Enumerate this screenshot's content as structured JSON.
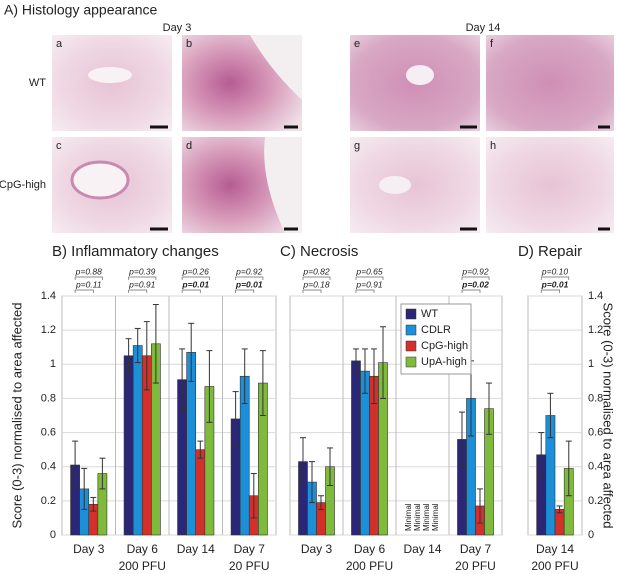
{
  "histology": {
    "title": "A) Histology appearance",
    "days": [
      "Day 3",
      "Day 14"
    ],
    "rows": [
      "WT",
      "CpG-high"
    ],
    "panels": [
      "a",
      "b",
      "c",
      "d",
      "e",
      "f",
      "g",
      "h"
    ]
  },
  "chart_data": [
    {
      "type": "bar",
      "title": "B) Inflammatory changes",
      "ylabel": "Score (0-3) normalised to area affected",
      "ytick_side": "left",
      "categories": [
        "Day 3",
        "Day 6",
        "Day 14",
        "Day 7"
      ],
      "dose": [
        "200 PFU",
        "200 PFU",
        "200 PFU",
        "20 PFU"
      ],
      "ylim": [
        0,
        1.4
      ],
      "yticks": [
        0,
        0.2,
        0.4,
        0.6,
        0.8,
        1,
        1.2,
        1.4
      ],
      "grid": true,
      "p_values": [
        [
          {
            "label": "p=0.88",
            "bold": false
          },
          {
            "label": "p=0.11",
            "bold": false
          }
        ],
        [
          {
            "label": "p=0.39",
            "bold": false
          },
          {
            "label": "p=0.91",
            "bold": false
          }
        ],
        [
          {
            "label": "p=0.26",
            "bold": false
          },
          {
            "label": "p=0.01",
            "bold": true
          }
        ],
        [
          {
            "label": "p=0.92",
            "bold": false
          },
          {
            "label": "p=0.01",
            "bold": true
          }
        ]
      ],
      "series": [
        {
          "name": "WT",
          "color": "#2b2676",
          "values": [
            0.41,
            1.05,
            0.91,
            0.68
          ],
          "errors": [
            0.14,
            0.1,
            0.18,
            0.16
          ]
        },
        {
          "name": "CDLR",
          "color": "#1b8fd8",
          "values": [
            0.27,
            1.11,
            1.07,
            0.93
          ],
          "errors": [
            0.12,
            0.1,
            0.17,
            0.16
          ]
        },
        {
          "name": "CpG-high",
          "color": "#d4302b",
          "values": [
            0.18,
            1.05,
            0.5,
            0.23
          ],
          "errors": [
            0.04,
            0.2,
            0.05,
            0.13
          ]
        },
        {
          "name": "UpA-high",
          "color": "#80ba3c",
          "values": [
            0.36,
            1.12,
            0.87,
            0.89
          ],
          "errors": [
            0.09,
            0.23,
            0.21,
            0.19
          ]
        }
      ]
    },
    {
      "type": "bar",
      "title": "C) Necrosis",
      "ytick_side": "none",
      "legend": "upper center",
      "categories": [
        "Day 3",
        "Day 6",
        "Day 14",
        "Day 7"
      ],
      "dose": [
        "200 PFU",
        "200 PFU",
        "200 PFU",
        "20 PFU"
      ],
      "ylim": [
        0,
        1.4
      ],
      "yticks": [
        0,
        0.2,
        0.4,
        0.6,
        0.8,
        1,
        1.2,
        1.4
      ],
      "grid": true,
      "p_values": [
        [
          {
            "label": "p=0.82",
            "bold": false
          },
          {
            "label": "p=0.18",
            "bold": false
          }
        ],
        [
          {
            "label": "p=0.65",
            "bold": false
          },
          {
            "label": "p=0.91",
            "bold": false
          }
        ],
        null,
        [
          {
            "label": "p=0.92",
            "bold": false
          },
          {
            "label": "p=0.02",
            "bold": true
          }
        ]
      ],
      "series": [
        {
          "name": "WT",
          "color": "#2b2676",
          "values": [
            0.43,
            1.02,
            null,
            0.56
          ],
          "errors": [
            0.14,
            0.07,
            null,
            0.16
          ],
          "value_labels": [
            null,
            null,
            "Minimal",
            null
          ]
        },
        {
          "name": "CDLR",
          "color": "#1b8fd8",
          "values": [
            0.31,
            0.96,
            null,
            0.8
          ],
          "errors": [
            0.12,
            0.13,
            null,
            0.22
          ],
          "value_labels": [
            null,
            null,
            "Minimal",
            null
          ]
        },
        {
          "name": "CpG-high",
          "color": "#d4302b",
          "values": [
            0.19,
            0.93,
            null,
            0.17
          ],
          "errors": [
            0.04,
            0.16,
            null,
            0.1
          ],
          "value_labels": [
            null,
            null,
            "Minimal",
            null
          ]
        },
        {
          "name": "UpA-high",
          "color": "#80ba3c",
          "values": [
            0.4,
            1.01,
            null,
            0.74
          ],
          "errors": [
            0.11,
            0.21,
            null,
            0.15
          ],
          "value_labels": [
            null,
            null,
            "Minimal",
            null
          ]
        }
      ]
    },
    {
      "type": "bar",
      "title": "D) Repair",
      "ylabel": "Score (0-3) normalised to area affected",
      "ytick_side": "right",
      "categories": [
        "Day 14"
      ],
      "dose": [
        "200 PFU"
      ],
      "ylim": [
        0,
        1.4
      ],
      "yticks": [
        0,
        0.2,
        0.4,
        0.6,
        0.8,
        1,
        1.2,
        1.4
      ],
      "grid": true,
      "p_values": [
        [
          {
            "label": "p=0.10",
            "bold": false
          },
          {
            "label": "p=0.01",
            "bold": true
          }
        ]
      ],
      "series": [
        {
          "name": "WT",
          "color": "#2b2676",
          "values": [
            0.47
          ],
          "errors": [
            0.13
          ]
        },
        {
          "name": "CDLR",
          "color": "#1b8fd8",
          "values": [
            0.7
          ],
          "errors": [
            0.13
          ]
        },
        {
          "name": "CpG-high",
          "color": "#d4302b",
          "values": [
            0.15
          ],
          "errors": [
            0.02
          ]
        },
        {
          "name": "UpA-high",
          "color": "#80ba3c",
          "values": [
            0.39
          ],
          "errors": [
            0.16
          ]
        }
      ]
    }
  ]
}
